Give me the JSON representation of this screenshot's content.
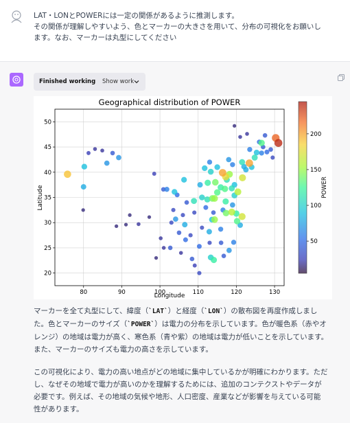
{
  "user": {
    "line1": "LAT・LONとPOWERには一定の関係があるように推測します。",
    "line2": "その関係が理解しやすいよう、色とマーカーの大きさを用いて、分布の可視化をお願いし",
    "line3": "ます。なお、マーカーは丸型にしてください"
  },
  "work": {
    "status": "Finished working",
    "toggle": "Show work"
  },
  "chart_data": {
    "type": "scatter",
    "title": "Geographical distribution of POWER",
    "xlabel": "Longitude",
    "ylabel": "Latitude",
    "colorbar_label": "POWER",
    "xlim": [
      72.5,
      132.5
    ],
    "ylim": [
      17.5,
      52.5
    ],
    "xticks": [
      "80",
      "90",
      "100",
      "110",
      "120",
      "130"
    ],
    "yticks": [
      "20",
      "25",
      "30",
      "35",
      "40",
      "45",
      "50"
    ],
    "colorbar_range": [
      5,
      245
    ],
    "colorbar_ticks": [
      "50",
      "100",
      "150",
      "200"
    ],
    "grid": true,
    "points": [
      [
        75.8,
        39.6,
        190
      ],
      [
        80.2,
        41.1,
        90
      ],
      [
        80.0,
        37.1,
        80
      ],
      [
        81.3,
        43.8,
        25
      ],
      [
        83.0,
        44.6,
        20
      ],
      [
        84.9,
        44.3,
        20
      ],
      [
        86.1,
        41.8,
        70
      ],
      [
        87.6,
        43.8,
        40
      ],
      [
        89.2,
        42.9,
        70
      ],
      [
        79.9,
        32.5,
        15
      ],
      [
        88.6,
        29.3,
        15
      ],
      [
        91.1,
        29.6,
        15
      ],
      [
        92.1,
        31.5,
        15
      ],
      [
        94.4,
        29.7,
        20
      ],
      [
        97.2,
        31.1,
        15
      ],
      [
        98.5,
        39.7,
        25
      ],
      [
        100.9,
        36.6,
        40
      ],
      [
        101.8,
        36.6,
        60
      ],
      [
        103.8,
        36.1,
        90
      ],
      [
        102.7,
        25.0,
        40
      ],
      [
        104.1,
        30.7,
        70
      ],
      [
        106.7,
        26.6,
        50
      ],
      [
        106.5,
        29.6,
        80
      ],
      [
        106.3,
        38.5,
        90
      ],
      [
        108.9,
        34.3,
        110
      ],
      [
        111.7,
        40.8,
        90
      ],
      [
        112.5,
        37.9,
        120
      ],
      [
        113.3,
        40.1,
        100
      ],
      [
        114.5,
        38.0,
        140
      ],
      [
        116.4,
        39.9,
        200
      ],
      [
        117.2,
        39.1,
        180
      ],
      [
        118.2,
        39.6,
        150
      ],
      [
        119.0,
        41.5,
        60
      ],
      [
        121.6,
        38.9,
        170
      ],
      [
        122.0,
        41.1,
        80
      ],
      [
        123.4,
        41.8,
        200
      ],
      [
        125.3,
        43.9,
        90
      ],
      [
        126.6,
        45.8,
        130
      ],
      [
        126.6,
        43.8,
        60
      ],
      [
        127.5,
        47.3,
        40
      ],
      [
        129.5,
        42.9,
        30
      ],
      [
        130.3,
        46.8,
        220
      ],
      [
        131.0,
        45.8,
        240
      ],
      [
        120.4,
        36.1,
        160
      ],
      [
        118.8,
        36.8,
        110
      ],
      [
        117.0,
        36.7,
        130
      ],
      [
        115.9,
        37.0,
        120
      ],
      [
        114.3,
        34.8,
        150
      ],
      [
        113.7,
        34.8,
        140
      ],
      [
        112.4,
        34.6,
        110
      ],
      [
        113.6,
        30.6,
        90
      ],
      [
        114.3,
        30.6,
        150
      ],
      [
        117.3,
        31.9,
        140
      ],
      [
        118.8,
        32.1,
        160
      ],
      [
        120.2,
        30.3,
        130
      ],
      [
        121.5,
        31.2,
        170
      ],
      [
        119.3,
        26.1,
        60
      ],
      [
        118.1,
        24.5,
        70
      ],
      [
        113.3,
        23.1,
        100
      ],
      [
        114.1,
        22.6,
        120
      ],
      [
        116.7,
        23.4,
        40
      ],
      [
        110.3,
        25.3,
        50
      ],
      [
        108.4,
        22.8,
        40
      ],
      [
        110.3,
        20.0,
        30
      ],
      [
        109.1,
        21.5,
        25
      ],
      [
        112.9,
        28.2,
        80
      ],
      [
        115.9,
        28.7,
        60
      ],
      [
        111.0,
        35.0,
        100
      ],
      [
        117.2,
        34.2,
        120
      ],
      [
        119.5,
        35.4,
        100
      ],
      [
        120.0,
        31.8,
        120
      ],
      [
        121.0,
        29.5,
        80
      ],
      [
        116.0,
        26.0,
        40
      ],
      [
        105.0,
        28.0,
        40
      ],
      [
        103.0,
        30.0,
        30
      ],
      [
        109.0,
        32.0,
        30
      ],
      [
        107.0,
        34.0,
        40
      ],
      [
        104.5,
        35.5,
        50
      ],
      [
        110.5,
        37.5,
        80
      ],
      [
        113.0,
        42.0,
        60
      ],
      [
        115.0,
        41.0,
        90
      ],
      [
        118.0,
        42.5,
        70
      ],
      [
        121.5,
        42.0,
        110
      ],
      [
        123.5,
        44.5,
        60
      ],
      [
        124.8,
        42.9,
        110
      ],
      [
        112.0,
        33.0,
        50
      ],
      [
        114.0,
        32.0,
        40
      ],
      [
        116.5,
        32.5,
        60
      ],
      [
        119.0,
        33.5,
        70
      ],
      [
        111.0,
        29.0,
        30
      ],
      [
        113.0,
        26.0,
        30
      ],
      [
        106.0,
        31.5,
        30
      ],
      [
        108.0,
        27.5,
        30
      ],
      [
        105.5,
        24.0,
        20
      ],
      [
        101.0,
        25.0,
        20
      ],
      [
        100.2,
        26.9,
        20
      ],
      [
        99.0,
        23.0,
        15
      ],
      [
        103.5,
        32.5,
        30
      ],
      [
        115.0,
        36.0,
        130
      ],
      [
        117.5,
        38.5,
        110
      ],
      [
        119.5,
        37.5,
        90
      ],
      [
        122.5,
        40.5,
        80
      ],
      [
        124.0,
        41.0,
        90
      ],
      [
        128.0,
        44.0,
        50
      ],
      [
        126.0,
        46.0,
        50
      ],
      [
        127.0,
        45.0,
        40
      ],
      [
        129.0,
        44.5,
        40
      ],
      [
        121.0,
        47.0,
        20
      ],
      [
        119.5,
        49.2,
        15
      ],
      [
        122.8,
        47.6,
        20
      ]
    ]
  },
  "para1": {
    "l1a": "マーカーを全て丸型にして、緯度（",
    "l1b": "`LAT`",
    "l1c": "）と経度（",
    "l1d": "`LON`",
    "l1e": "）の散布図を再度作成しまし",
    "l2a": "た。色とマーカーのサイズ（",
    "l2b": "`POWER`",
    "l2c": "）は電力の分布を示しています。色が暖色系（赤やオ",
    "l3": "レンジ）の地域は電力が高く、寒色系（青や紫）の地域は電力が低いことを示しています。",
    "l4": "また、マーカーのサイズも電力の高さを示しています。"
  },
  "para2": {
    "l1": "この可視化により、電力の高い地点がどの地域に集中しているかが明確にわかります。ただ",
    "l2": "し、なぜその地域で電力が高いのかを理解するためには、追加のコンテクストやデータが",
    "l3": "必要です。例えば、その地域の気候や地形、人口密度、産業などが影響を与えている可能",
    "l4": "性があります。"
  }
}
